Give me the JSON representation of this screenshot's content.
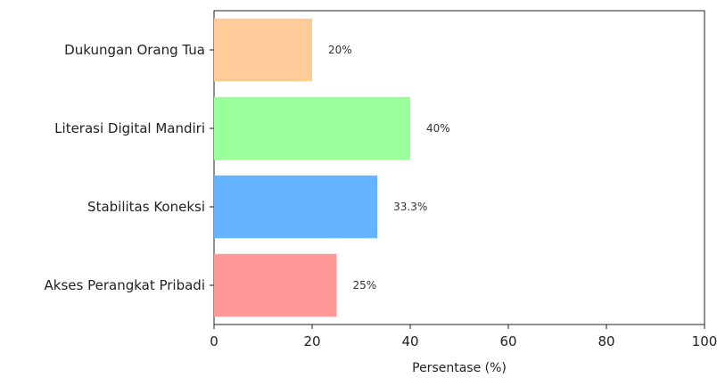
{
  "chart_data": {
    "type": "bar",
    "orientation": "horizontal",
    "categories": [
      "Akses Perangkat Pribadi",
      "Stabilitas Koneksi",
      "Literasi Digital Mandiri",
      "Dukungan Orang Tua"
    ],
    "values": [
      25,
      33.3,
      40,
      20
    ],
    "data_labels": [
      "25%",
      "33.3%",
      "40%",
      "20%"
    ],
    "colors": [
      "#ff9999",
      "#66b3ff",
      "#99ff99",
      "#ffcc99"
    ],
    "xlabel": "Persentase (%)",
    "xlim": [
      0,
      100
    ],
    "xticks": [
      "0",
      "20",
      "40",
      "60",
      "80",
      "100"
    ],
    "grid": false
  }
}
